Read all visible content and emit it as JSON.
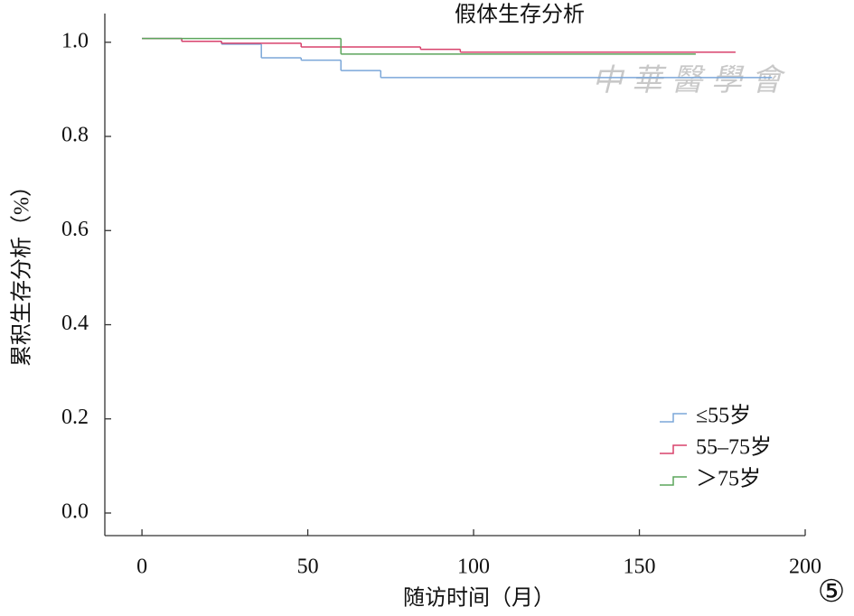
{
  "chart_data": {
    "type": "step",
    "title": "假体生存分析",
    "xlabel": "随访时间（月）",
    "ylabel": "累积生存分析（%）",
    "annotations": [
      "中華醫學會",
      "⑤"
    ],
    "xlim": [
      -11.2,
      200
    ],
    "xticks": [
      0,
      50,
      100,
      150,
      200
    ],
    "ylim": [
      -0.048,
      1.061
    ],
    "yticks": [
      {
        "value": 0,
        "label": "0.0"
      },
      {
        "value": 0.2,
        "label": "0.2"
      },
      {
        "value": 0.4,
        "label": "0.4"
      },
      {
        "value": 0.6,
        "label": "0.6"
      },
      {
        "value": 0.8,
        "label": "0.8"
      },
      {
        "value": 1,
        "label": "1.0"
      }
    ],
    "series": [
      {
        "name": "≤55岁",
        "color": "#7ba7d9",
        "x": [
          0,
          12,
          24,
          36,
          48,
          60,
          72,
          190
        ],
        "values": [
          1.008,
          1.002,
          0.996,
          0.967,
          0.962,
          0.94,
          0.925,
          0.925
        ]
      },
      {
        "name": "55–75岁",
        "color": "#d8426c",
        "x": [
          0,
          12,
          24,
          48,
          84,
          96,
          179
        ],
        "values": [
          1.008,
          1.002,
          0.998,
          0.99,
          0.985,
          0.979,
          0.979
        ]
      },
      {
        "name": "＞75岁",
        "color": "#5ca55c",
        "x": [
          0,
          60,
          167
        ],
        "values": [
          1.008,
          0.975,
          0.975
        ]
      }
    ]
  }
}
